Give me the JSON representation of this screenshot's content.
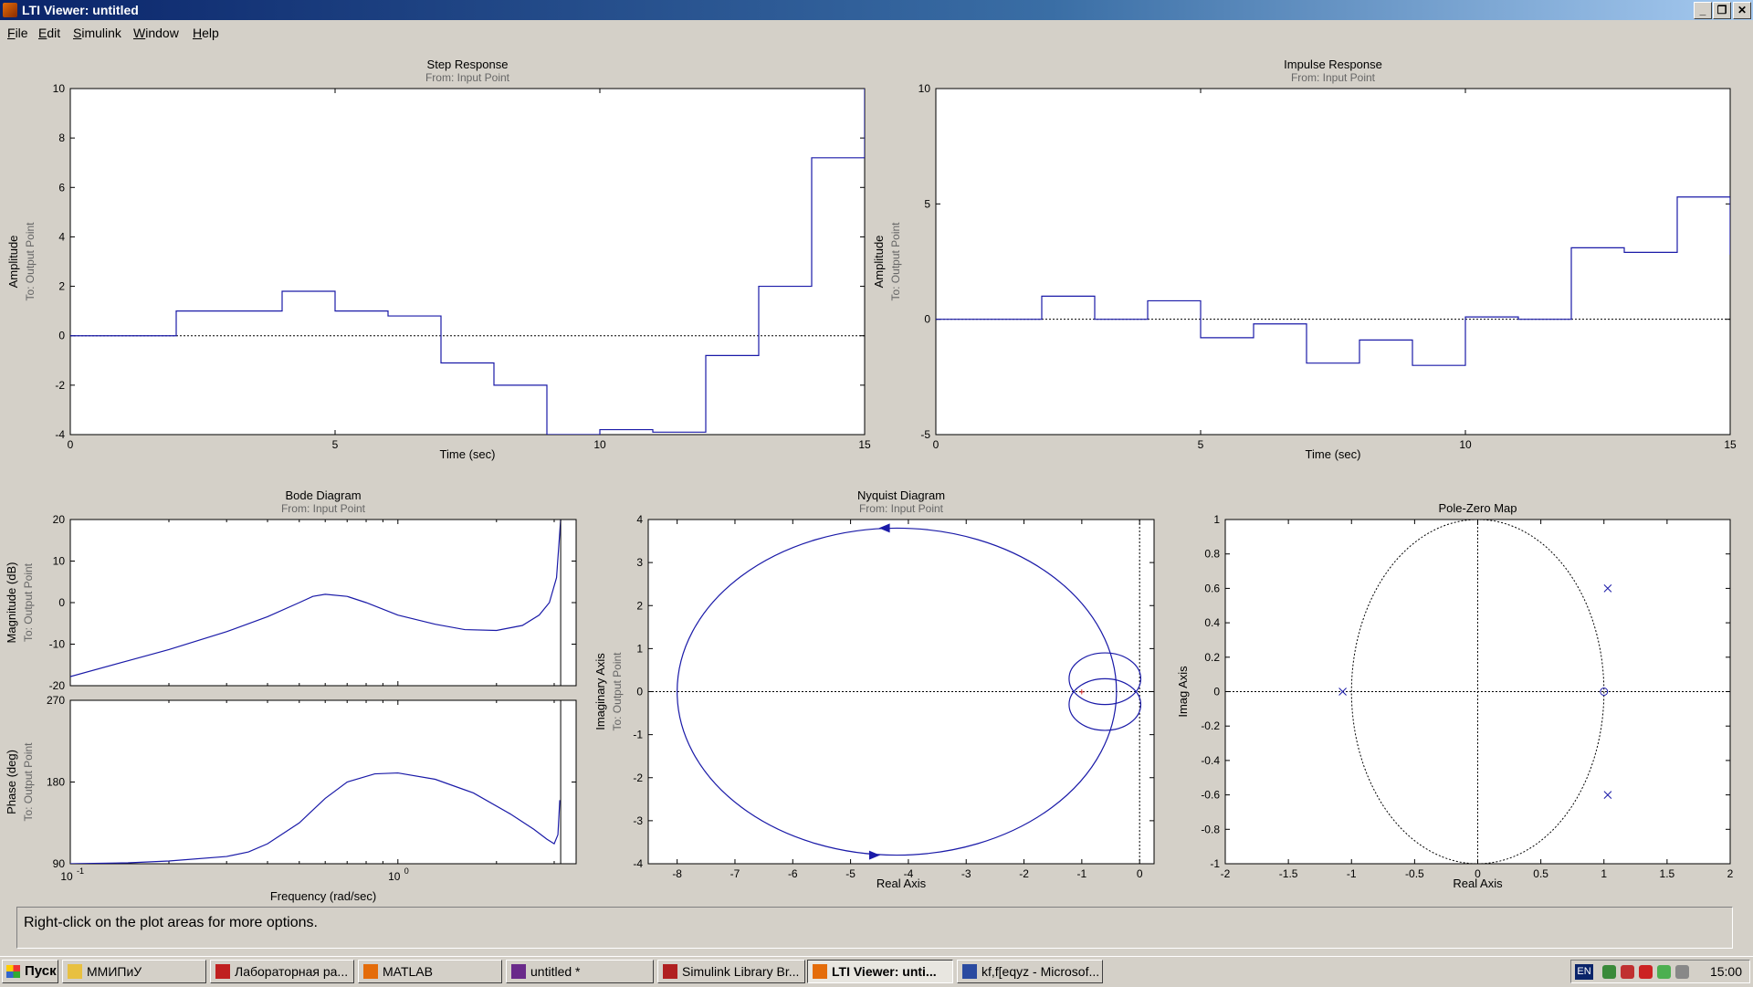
{
  "window": {
    "title": "LTI Viewer: untitled",
    "buttons": [
      "_",
      "❐",
      "✕"
    ]
  },
  "menu": [
    "File",
    "Edit",
    "Simulink",
    "Window",
    "Help"
  ],
  "status_text": "Right-click on the plot areas for more options.",
  "taskbar": {
    "start_label": "Пуск",
    "items": [
      "ММИПиУ",
      "Лабораторная ра...",
      "MATLAB",
      "untitled *",
      "Simulink Library Br...",
      "LTI Viewer: unti...",
      "kf,f[eqyz - Microsof..."
    ],
    "active_index": 5,
    "lang": "EN",
    "clock": "15:00"
  },
  "chart_data": [
    {
      "type": "line",
      "title": "Step Response",
      "subtitle": "From: Input Point",
      "ylabel": "Amplitude",
      "ylabel2": "To: Output Point",
      "xlabel": "Time (sec)",
      "xlim": [
        0,
        15
      ],
      "ylim": [
        -4,
        10
      ],
      "xticks": [
        0,
        5,
        10,
        15
      ],
      "yticks": [
        -4,
        -2,
        0,
        2,
        4,
        6,
        8,
        10
      ],
      "zero_line": 0,
      "step": true,
      "series": [
        {
          "x": [
            0,
            1,
            2,
            3,
            4,
            5,
            6,
            7,
            8,
            9,
            10,
            11,
            12,
            13,
            14,
            15
          ],
          "y": [
            0,
            0,
            1,
            1,
            1.8,
            1,
            0.8,
            -1.1,
            -2,
            -4,
            -3.8,
            -3.9,
            -0.8,
            2,
            7.2,
            10
          ]
        }
      ]
    },
    {
      "type": "line",
      "title": "Impulse Response",
      "subtitle": "From: Input Point",
      "ylabel": "Amplitude",
      "ylabel2": "To: Output Point",
      "xlabel": "Time (sec)",
      "xlim": [
        0,
        15
      ],
      "ylim": [
        -5,
        10
      ],
      "xticks": [
        0,
        5,
        10,
        15
      ],
      "yticks": [
        -5,
        0,
        5,
        10
      ],
      "zero_line": 0,
      "step": true,
      "series": [
        {
          "x": [
            0,
            1,
            2,
            3,
            4,
            5,
            6,
            7,
            8,
            9,
            10,
            11,
            12,
            13,
            14,
            15
          ],
          "y": [
            0,
            0,
            1,
            0,
            0.8,
            -0.8,
            -0.2,
            -1.9,
            -0.9,
            -2,
            0.1,
            0,
            3.1,
            2.9,
            5.3,
            2.8
          ]
        }
      ]
    },
    {
      "type": "line",
      "title": "Bode Diagram",
      "subtitle": "From: Input Point",
      "ylabel": "Magnitude (dB)",
      "ylabel2": "To: Output Point",
      "xscale": "log",
      "xlim": [
        0.1,
        3.5
      ],
      "ylim": [
        -20,
        20
      ],
      "xticks_major": [
        {
          "v": 0.1,
          "base": "10",
          "exp": "-1"
        },
        {
          "v": 1,
          "base": "10",
          "exp": "0"
        }
      ],
      "yticks": [
        -20,
        -10,
        0,
        10,
        20
      ],
      "vline": 3.14,
      "series": [
        {
          "x": [
            0.1,
            0.15,
            0.2,
            0.3,
            0.4,
            0.5,
            0.55,
            0.6,
            0.7,
            0.8,
            1,
            1.3,
            1.6,
            2,
            2.4,
            2.7,
            2.9,
            3.05,
            3.14
          ],
          "y": [
            -17.8,
            -14,
            -11.3,
            -7,
            -3.4,
            0,
            1.5,
            2,
            1.5,
            0,
            -3,
            -5.2,
            -6.5,
            -6.7,
            -5.5,
            -3,
            0,
            6,
            20
          ]
        }
      ]
    },
    {
      "type": "line",
      "title": "",
      "ylabel": "Phase (deg)",
      "ylabel2": "To: Output Point",
      "xlabel": "Frequency (rad/sec)",
      "xscale": "log",
      "xlim": [
        0.1,
        3.5
      ],
      "ylim": [
        90,
        270
      ],
      "xticks_major": [
        {
          "v": 0.1,
          "base": "10",
          "exp": "-1"
        },
        {
          "v": 1,
          "base": "10",
          "exp": "0"
        }
      ],
      "yticks": [
        90,
        180,
        270
      ],
      "vline": 3.14,
      "series": [
        {
          "x": [
            0.1,
            0.15,
            0.2,
            0.3,
            0.35,
            0.4,
            0.5,
            0.6,
            0.7,
            0.85,
            1,
            1.3,
            1.7,
            2.2,
            2.6,
            2.85,
            3.0,
            3.08,
            3.12
          ],
          "y": [
            90,
            91,
            93,
            98,
            103,
            112,
            135,
            162,
            180,
            189,
            190,
            183,
            168,
            145,
            128,
            117,
            112,
            122,
            160
          ]
        }
      ]
    },
    {
      "type": "line",
      "title": "Nyquist Diagram",
      "subtitle": "From: Input Point",
      "ylabel": "Imaginary Axis",
      "ylabel2": "To: Output Point",
      "xlabel": "Real Axis",
      "xlim": [
        -8.5,
        0.25
      ],
      "ylim": [
        -4,
        4
      ],
      "xticks": [
        -8,
        -7,
        -6,
        -5,
        -4,
        -3,
        -2,
        -1,
        0
      ],
      "yticks": [
        -4,
        -3,
        -2,
        -1,
        0,
        1,
        2,
        3,
        4
      ],
      "critical_point": [
        -1,
        0
      ],
      "ellipse": {
        "cx": -4.2,
        "cy": 0,
        "rx": 3.8,
        "ry": 3.8
      },
      "loops": [
        {
          "cx": -0.6,
          "cy": 0.3,
          "rx": 0.62,
          "ry": 0.6
        },
        {
          "cx": -0.6,
          "cy": -0.3,
          "rx": 0.62,
          "ry": 0.6
        }
      ],
      "arrows": [
        {
          "x": -4.4,
          "y": 3.8,
          "dir": "left"
        },
        {
          "x": -4.6,
          "y": -3.8,
          "dir": "right"
        }
      ]
    },
    {
      "type": "scatter",
      "title": "Pole-Zero Map",
      "ylabel": "Imag Axis",
      "xlabel": "Real Axis",
      "xlim": [
        -2,
        2
      ],
      "ylim": [
        -1,
        1
      ],
      "xticks": [
        -2,
        -1.5,
        -1,
        -0.5,
        0,
        0.5,
        1,
        1.5,
        2
      ],
      "yticks": [
        -1,
        -0.8,
        -0.6,
        -0.4,
        -0.2,
        0,
        0.2,
        0.4,
        0.6,
        0.8,
        1
      ],
      "unit_circle": true,
      "poles": [
        [
          1.03,
          0.6
        ],
        [
          1.03,
          -0.6
        ],
        [
          -1.07,
          0
        ]
      ],
      "zeros": [
        [
          1.0,
          0
        ]
      ]
    }
  ]
}
